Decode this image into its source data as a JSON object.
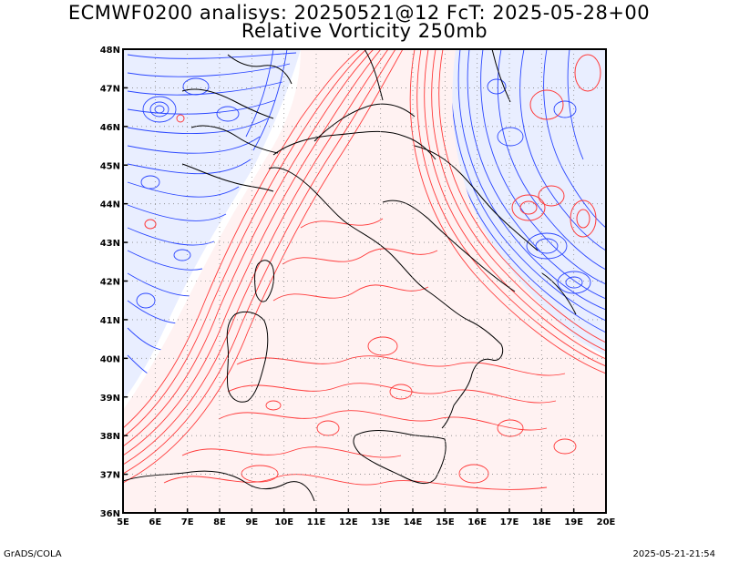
{
  "title": {
    "line1": "ECMWF0200 analisys: 20250521@12 FcT: 2025-05-28+00",
    "line2": "Relative Vorticity 250mb"
  },
  "footer": {
    "left": "GrADS/COLA",
    "right": "2025-05-21-21:54"
  },
  "map": {
    "lon_range": [
      5,
      20
    ],
    "lat_range": [
      36,
      48
    ],
    "lon_ticks": [
      "5E",
      "6E",
      "7E",
      "8E",
      "9E",
      "10E",
      "11E",
      "12E",
      "13E",
      "14E",
      "15E",
      "16E",
      "17E",
      "18E",
      "19E",
      "20E"
    ],
    "lat_ticks": [
      "36N",
      "37N",
      "38N",
      "39N",
      "40N",
      "41N",
      "42N",
      "43N",
      "44N",
      "45N",
      "46N",
      "47N",
      "48N"
    ],
    "grid": "dotted",
    "positive_color": "#ff3030",
    "negative_color": "#2040ff",
    "coast_color": "#000000"
  }
}
